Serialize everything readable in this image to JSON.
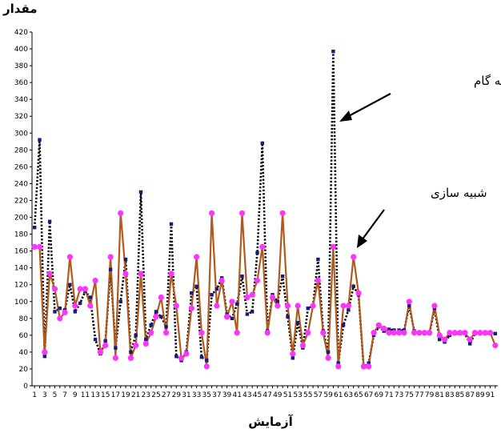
{
  "chart_data": {
    "type": "line",
    "title": "",
    "xlabel": "آزمایش",
    "ylabel": "مقدار",
    "ylim": [
      0,
      420
    ],
    "xlim": [
      1,
      92
    ],
    "yticks": [
      0,
      20,
      40,
      60,
      80,
      100,
      120,
      140,
      160,
      180,
      200,
      220,
      240,
      260,
      280,
      300,
      320,
      340,
      360,
      380,
      400,
      420
    ],
    "x": [
      1,
      2,
      3,
      4,
      5,
      6,
      7,
      8,
      9,
      10,
      11,
      12,
      13,
      14,
      15,
      16,
      17,
      18,
      19,
      20,
      21,
      22,
      23,
      24,
      25,
      26,
      27,
      28,
      29,
      30,
      31,
      32,
      33,
      34,
      35,
      36,
      37,
      38,
      39,
      40,
      41,
      42,
      43,
      44,
      45,
      46,
      47,
      48,
      49,
      50,
      51,
      52,
      53,
      54,
      55,
      56,
      57,
      58,
      59,
      60,
      61,
      62,
      63,
      64,
      65,
      66,
      67,
      68,
      69,
      70,
      71,
      72,
      73,
      74,
      75,
      76,
      77,
      78,
      79,
      80,
      81,
      82,
      83,
      84,
      85,
      86,
      87,
      88,
      89,
      90,
      91,
      92
    ],
    "series": [
      {
        "name": "رگرسیون گام به گام",
        "color": "#1a1a7a",
        "values": [
          188,
          292,
          35,
          195,
          88,
          92,
          90,
          120,
          88,
          98,
          112,
          105,
          55,
          38,
          53,
          138,
          45,
          100,
          150,
          40,
          60,
          230,
          55,
          72,
          88,
          82,
          70,
          192,
          35,
          30,
          40,
          110,
          118,
          34,
          30,
          108,
          115,
          128,
          85,
          80,
          97,
          130,
          85,
          88,
          158,
          288,
          65,
          108,
          100,
          130,
          82,
          33,
          75,
          45,
          92,
          95,
          150,
          65,
          40,
          397,
          27,
          72,
          90,
          118,
          108,
          22,
          27,
          60,
          70,
          65,
          67,
          66,
          66,
          66,
          95,
          65,
          62,
          62,
          62,
          92,
          55,
          52,
          60,
          62,
          62,
          62,
          50,
          62,
          62,
          62,
          62,
          62
        ]
      },
      {
        "name": "شبیه سازی",
        "color": "#b05a1e",
        "values": [
          165,
          165,
          40,
          133,
          115,
          80,
          87,
          153,
          95,
          115,
          115,
          95,
          125,
          40,
          48,
          153,
          33,
          205,
          133,
          33,
          48,
          133,
          50,
          63,
          82,
          105,
          63,
          133,
          95,
          33,
          38,
          92,
          153,
          63,
          23,
          205,
          95,
          125,
          82,
          100,
          63,
          205,
          105,
          108,
          125,
          165,
          63,
          105,
          95,
          205,
          95,
          38,
          95,
          48,
          63,
          95,
          125,
          63,
          33,
          165,
          23,
          95,
          95,
          153,
          110,
          23,
          23,
          63,
          72,
          68,
          63,
          63,
          63,
          63,
          100,
          63,
          63,
          63,
          63,
          95,
          60,
          55,
          63,
          63,
          63,
          63,
          55,
          63,
          63,
          63,
          63,
          48
        ]
      }
    ],
    "xtick_labels": [
      "1",
      "3",
      "5",
      "7",
      "9",
      "11",
      "13",
      "15",
      "17",
      "19",
      "21",
      "23",
      "25",
      "27",
      "29",
      "31",
      "33",
      "35",
      "37",
      "39",
      "41",
      "43",
      "45",
      "47",
      "49",
      "51",
      "53",
      "55",
      "57",
      "59",
      "61",
      "63",
      "65",
      "67",
      "69",
      "71",
      "73",
      "75",
      "77",
      "79",
      "81",
      "83",
      "85",
      "87",
      "89",
      "91"
    ],
    "annotations": [
      {
        "text": "رگرسیون گام به گام"
      },
      {
        "text": "شبیه سازی"
      }
    ]
  }
}
